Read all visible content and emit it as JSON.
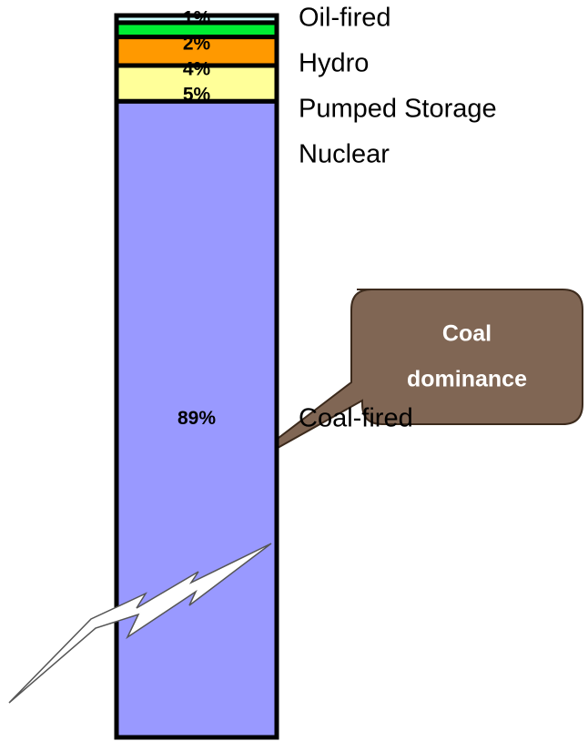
{
  "chart_data": {
    "type": "bar",
    "stacked": true,
    "series": [
      {
        "name": "Coal-fired",
        "color": "#9999ff",
        "values": [
          89
        ],
        "value_labels": [
          "89%"
        ]
      },
      {
        "name": "Nuclear",
        "color": "#ffff99",
        "values": [
          5
        ],
        "value_labels": [
          "5%"
        ]
      },
      {
        "name": "Pumped Storage",
        "color": "#ff9900",
        "values": [
          4
        ],
        "value_labels": [
          "4%"
        ]
      },
      {
        "name": "Hydro",
        "color": "#00ee33",
        "values": [
          2
        ],
        "value_labels": [
          "2%"
        ]
      },
      {
        "name": "Oil-fired",
        "color": "#ccffff",
        "values": [
          1
        ],
        "value_labels": [
          "1%"
        ]
      }
    ],
    "annotation": [
      "Coal",
      "dominance"
    ]
  }
}
